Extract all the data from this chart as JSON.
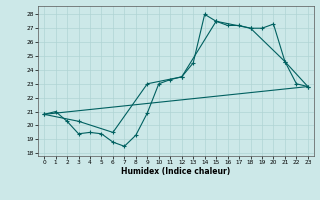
{
  "xlabel": "Humidex (Indice chaleur)",
  "ylabel": "",
  "xlim": [
    -0.5,
    23.5
  ],
  "ylim": [
    17.8,
    28.6
  ],
  "yticks": [
    18,
    19,
    20,
    21,
    22,
    23,
    24,
    25,
    26,
    27,
    28
  ],
  "xticks": [
    0,
    1,
    2,
    3,
    4,
    5,
    6,
    7,
    8,
    9,
    10,
    11,
    12,
    13,
    14,
    15,
    16,
    17,
    18,
    19,
    20,
    21,
    22,
    23
  ],
  "bg_color": "#cce8e8",
  "grid_color": "#b0d4d4",
  "line_color": "#006060",
  "line1_x": [
    0,
    1,
    2,
    3,
    4,
    5,
    6,
    7,
    8,
    9,
    10,
    11,
    12,
    13,
    14,
    15,
    16,
    17,
    18,
    19,
    20,
    21,
    22,
    23
  ],
  "line1_y": [
    20.8,
    21.0,
    20.3,
    19.4,
    19.5,
    19.4,
    18.8,
    18.5,
    19.3,
    20.9,
    23.0,
    23.3,
    23.5,
    24.5,
    28.0,
    27.5,
    27.2,
    27.2,
    27.0,
    27.0,
    27.3,
    24.6,
    23.0,
    22.8
  ],
  "line2_x": [
    0,
    3,
    6,
    9,
    12,
    15,
    18,
    21,
    23
  ],
  "line2_y": [
    20.8,
    20.3,
    19.5,
    23.0,
    23.5,
    27.5,
    27.0,
    24.6,
    22.8
  ],
  "line3_x": [
    0,
    23
  ],
  "line3_y": [
    20.8,
    22.8
  ]
}
